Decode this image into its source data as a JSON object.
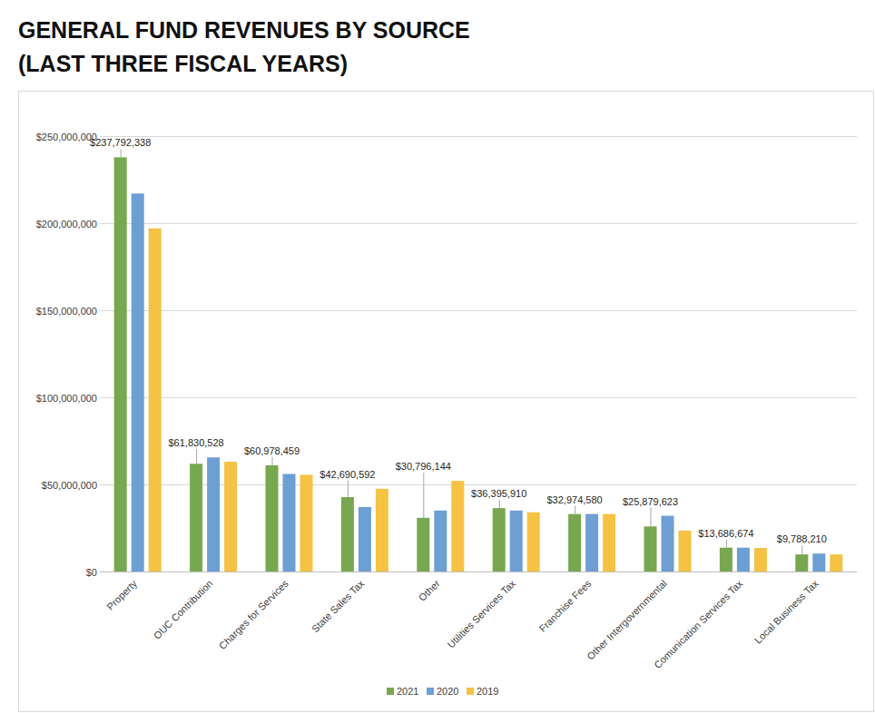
{
  "chart_data": {
    "type": "bar",
    "title": "GENERAL FUND REVENUES BY SOURCE",
    "subtitle": "(LAST THREE FISCAL YEARS)",
    "categories": [
      "Property",
      "OUC Contribution",
      "Charges for Services",
      "State Sales Tax",
      "Other",
      "Utilities Services Tax",
      "Franchise Fees",
      "Other Intergovernmental",
      "Comunication Services Tax",
      "Local Business Tax"
    ],
    "series": [
      {
        "name": "2021",
        "color": "#77a84f",
        "data_labels": true,
        "values": [
          237792338,
          61830528,
          60978459,
          42690592,
          30796144,
          36395910,
          32974580,
          25879623,
          13686674,
          9788210
        ],
        "value_labels": [
          "$237,792,338",
          "$61,830,528",
          "$60,978,459",
          "$42,690,592",
          "$30,796,144",
          "$36,395,910",
          "$32,974,580",
          "$25,879,623",
          "$13,686,674",
          "$9,788,210"
        ]
      },
      {
        "name": "2020",
        "color": "#6d9fd5",
        "values": [
          217000000,
          65500000,
          56000000,
          37000000,
          35000000,
          35000000,
          33000000,
          32000000,
          13700000,
          10300000
        ]
      },
      {
        "name": "2019",
        "color": "#f6c243",
        "values": [
          197000000,
          63000000,
          55500000,
          47500000,
          52000000,
          34000000,
          33000000,
          23500000,
          13500000,
          9800000
        ]
      }
    ],
    "ylim": [
      0,
      250000000
    ],
    "yticks": [
      {
        "value": 0,
        "label": "$0"
      },
      {
        "value": 50000000,
        "label": "$50,000,000"
      },
      {
        "value": 100000000,
        "label": "$100,000,000"
      },
      {
        "value": 150000000,
        "label": "$150,000,000"
      },
      {
        "value": 200000000,
        "label": "$200,000,000"
      },
      {
        "value": 250000000,
        "label": "$250,000,000"
      }
    ],
    "grid": true,
    "legend": "bottom"
  }
}
